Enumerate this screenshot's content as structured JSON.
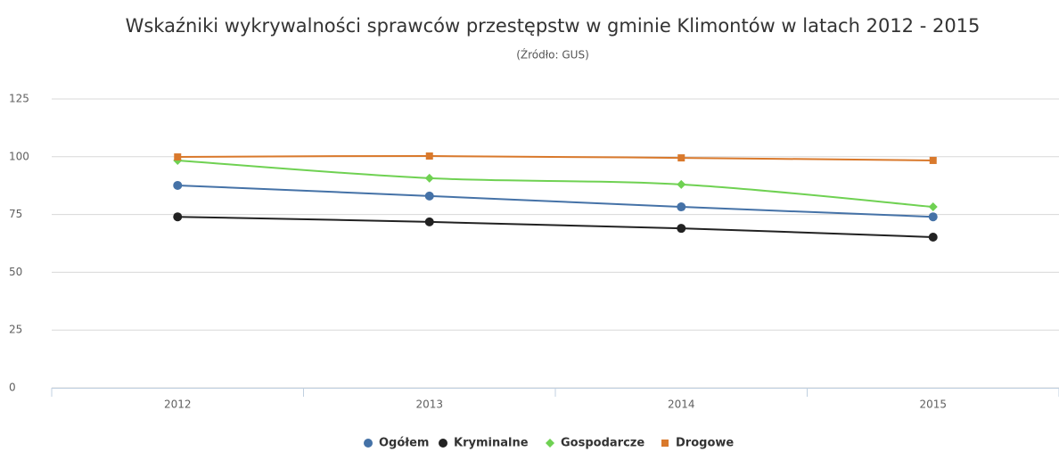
{
  "chart_data": {
    "type": "line",
    "title": "Wskaźniki wykrywalności sprawców przestępstw w gminie Klimontów w latach 2012 - 2015",
    "subtitle": "(Źródło: GUS)",
    "categories": [
      "2012",
      "2013",
      "2014",
      "2015"
    ],
    "series": [
      {
        "name": "Ogółem",
        "color": "#4572a7",
        "marker": "circle",
        "values": [
          87.6,
          83,
          78.3,
          74
        ]
      },
      {
        "name": "Kryminalne",
        "color": "#222222",
        "marker": "circle",
        "values": [
          74,
          71.8,
          69,
          65.2
        ]
      },
      {
        "name": "Gospodarcze",
        "color": "#6fd152",
        "marker": "diamond",
        "values": [
          98.4,
          90.7,
          88,
          78.3
        ]
      },
      {
        "name": "Drogowe",
        "color": "#d9792c",
        "marker": "square",
        "values": [
          99.9,
          100.3,
          99.5,
          98.4
        ]
      }
    ],
    "ylim": [
      0,
      125
    ],
    "yticks": [
      0,
      25,
      50,
      75,
      100,
      125
    ],
    "grid": true,
    "spline": true,
    "legend": "bottom"
  }
}
